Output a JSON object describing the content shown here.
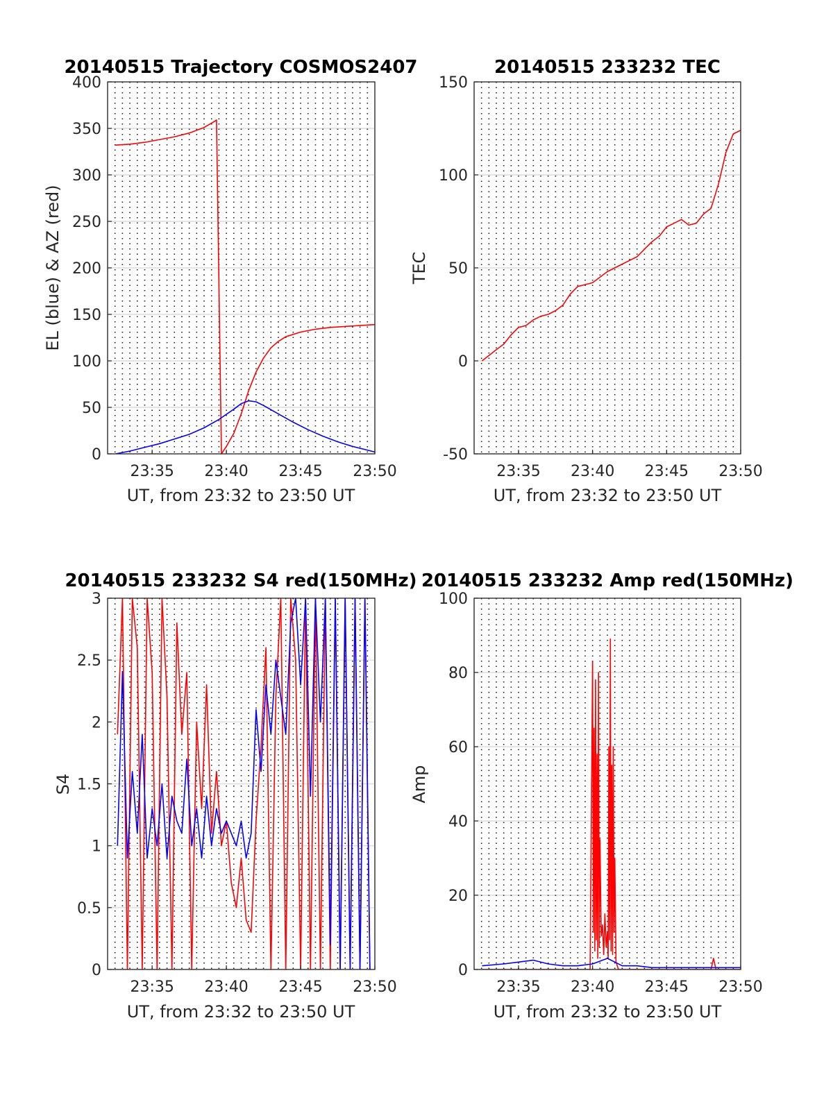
{
  "colors": {
    "red": "#ff0000",
    "blue": "#0000ff",
    "axis": "#262626"
  },
  "chart_data": [
    {
      "id": "trajectory",
      "type": "line",
      "title": "20140515 Trajectory COSMOS2407",
      "xlabel": "UT, from 23:32 to 23:50 UT",
      "ylabel": "EL (blue) & AZ (red)",
      "xlim": [
        "23:32",
        "23:50"
      ],
      "ylim": [
        0,
        400
      ],
      "yticks": [
        0,
        50,
        100,
        150,
        200,
        250,
        300,
        350,
        400
      ],
      "ytick_labels": [
        "0",
        "50",
        "100",
        "150",
        "200",
        "250",
        "300",
        "350",
        "400"
      ],
      "xticks": [
        "23:35",
        "23:40",
        "23:45",
        "23:50"
      ],
      "grid": {
        "y": "solid light gray",
        "x": "dotted every 30 s"
      },
      "series": [
        {
          "color": "red",
          "role": "AZ",
          "x": [
            "23:32:32",
            "23:33:30",
            "23:34:30",
            "23:35:30",
            "23:36:30",
            "23:37:30",
            "23:38:30",
            "23:39:15",
            "23:39:20",
            "23:39:40",
            "23:40:00",
            "23:40:30",
            "23:41:00",
            "23:41:30",
            "23:42:00",
            "23:42:30",
            "23:43:00",
            "23:43:30",
            "23:44:00",
            "23:45:00",
            "23:46:00",
            "23:47:00",
            "23:48:00",
            "23:49:00",
            "23:50:00"
          ],
          "y": [
            332,
            333,
            335,
            338,
            341,
            345,
            351,
            358,
            359,
            0,
            8,
            22,
            43,
            68,
            88,
            103,
            114,
            121,
            126,
            131,
            134,
            136,
            137,
            138,
            139
          ]
        },
        {
          "color": "blue",
          "role": "EL",
          "x": [
            "23:32:32",
            "23:33:30",
            "23:34:30",
            "23:35:30",
            "23:36:30",
            "23:37:30",
            "23:38:30",
            "23:39:30",
            "23:40:30",
            "23:41:00",
            "23:41:30",
            "23:42:00",
            "23:42:30",
            "23:43:30",
            "23:44:30",
            "23:45:30",
            "23:46:30",
            "23:47:30",
            "23:48:30",
            "23:49:30",
            "23:50:00"
          ],
          "y": [
            0,
            3,
            7,
            11,
            16,
            21,
            28,
            37,
            48,
            54,
            57,
            56,
            52,
            43,
            34,
            26,
            19,
            13,
            8,
            4,
            2
          ]
        }
      ]
    },
    {
      "id": "tec",
      "type": "line",
      "title": "20140515 233232 TEC",
      "xlabel": "UT, from 23:32 to 23:50 UT",
      "ylabel": "TEC",
      "xlim": [
        "23:32",
        "23:50"
      ],
      "ylim": [
        -50,
        150
      ],
      "yticks": [
        -50,
        0,
        50,
        100,
        150
      ],
      "ytick_labels": [
        "-50",
        "0",
        "50",
        "100",
        "150"
      ],
      "xticks": [
        "23:35",
        "23:40",
        "23:45",
        "23:50"
      ],
      "grid": {
        "y": "solid light gray",
        "x": "dotted every 30 s"
      },
      "series": [
        {
          "color": "red",
          "role": "TEC",
          "x": [
            "23:32:32",
            "23:33:30",
            "23:34:00",
            "23:34:30",
            "23:35:00",
            "23:35:30",
            "23:36:00",
            "23:36:30",
            "23:37:00",
            "23:37:30",
            "23:38:00",
            "23:38:30",
            "23:39:00",
            "23:39:30",
            "23:40:00",
            "23:40:30",
            "23:41:00",
            "23:41:30",
            "23:42:00",
            "23:42:30",
            "23:43:00",
            "23:43:30",
            "23:44:00",
            "23:44:30",
            "23:45:00",
            "23:45:30",
            "23:46:00",
            "23:46:30",
            "23:47:00",
            "23:47:30",
            "23:48:00",
            "23:48:30",
            "23:49:00",
            "23:49:30",
            "23:50:00"
          ],
          "y": [
            0,
            6,
            9,
            14,
            18,
            19,
            22,
            24,
            25,
            27,
            30,
            36,
            40,
            41,
            42,
            45,
            48,
            50,
            52,
            54,
            56,
            60,
            64,
            67,
            72,
            74,
            76,
            73,
            74,
            79,
            82,
            95,
            112,
            122,
            124
          ]
        }
      ]
    },
    {
      "id": "s4",
      "type": "line",
      "title": "20140515 233232 S4 red(150MHz)",
      "xlabel": "UT, from 23:32 to 23:50 UT",
      "ylabel": "S4",
      "xlim": [
        "23:32",
        "23:50"
      ],
      "ylim": [
        0,
        3
      ],
      "yticks": [
        0,
        0.5,
        1,
        1.5,
        2,
        2.5,
        3
      ],
      "ytick_labels": [
        "0",
        "0.5",
        "1",
        "1.5",
        "2",
        "2.5",
        "3"
      ],
      "xticks": [
        "23:35",
        "23:40",
        "23:45",
        "23:50"
      ],
      "grid": {
        "y": "solid light gray",
        "x": "dotted every 30 s"
      },
      "series": [
        {
          "color": "red",
          "role": "S4 red",
          "x": [
            "23:32:40",
            "23:33:00",
            "23:33:20",
            "23:33:40",
            "23:34:00",
            "23:34:20",
            "23:34:40",
            "23:35:00",
            "23:35:20",
            "23:35:40",
            "23:36:00",
            "23:36:20",
            "23:36:40",
            "23:37:00",
            "23:37:20",
            "23:37:40",
            "23:38:00",
            "23:38:20",
            "23:38:40",
            "23:39:00",
            "23:39:20",
            "23:39:40",
            "23:40:00",
            "23:40:20",
            "23:40:40",
            "23:41:00",
            "23:41:20",
            "23:41:40",
            "23:42:00",
            "23:42:20",
            "23:42:40",
            "23:43:00",
            "23:43:20",
            "23:43:40",
            "23:44:00",
            "23:44:20",
            "23:44:40",
            "23:45:00",
            "23:45:20",
            "23:45:40",
            "23:46:00",
            "23:46:20",
            "23:46:40",
            "23:47:00",
            "23:47:20",
            "23:47:40",
            "23:48:00",
            "23:48:20",
            "23:48:40",
            "23:49:00",
            "23:49:20",
            "23:49:40"
          ],
          "y": [
            1.9,
            3.0,
            0.0,
            3.0,
            2.6,
            0.0,
            3.0,
            2.4,
            0.0,
            3.0,
            2.2,
            0.0,
            2.8,
            1.9,
            2.4,
            0.0,
            2.0,
            1.3,
            2.3,
            1.1,
            1.6,
            1.0,
            1.2,
            0.7,
            0.5,
            0.9,
            0.4,
            0.3,
            1.2,
            1.8,
            2.6,
            0.0,
            2.2,
            3.0,
            0.0,
            3.0,
            2.5,
            0.0,
            3.0,
            0.0,
            3.0,
            0.0,
            3.0,
            0.0,
            3.0,
            0.0,
            3.0,
            0.0,
            3.0,
            0.0,
            3.0,
            0.0
          ]
        },
        {
          "color": "blue",
          "role": "S4 blue",
          "x": [
            "23:32:40",
            "23:33:00",
            "23:33:20",
            "23:33:40",
            "23:34:00",
            "23:34:20",
            "23:34:40",
            "23:35:00",
            "23:35:20",
            "23:35:40",
            "23:36:00",
            "23:36:20",
            "23:36:40",
            "23:37:00",
            "23:37:20",
            "23:37:40",
            "23:38:00",
            "23:38:20",
            "23:38:40",
            "23:39:00",
            "23:39:20",
            "23:39:40",
            "23:40:00",
            "23:40:20",
            "23:40:40",
            "23:41:00",
            "23:41:20",
            "23:41:40",
            "23:42:00",
            "23:42:20",
            "23:42:40",
            "23:43:00",
            "23:43:20",
            "23:43:40",
            "23:44:00",
            "23:44:20",
            "23:44:40",
            "23:45:00",
            "23:45:20",
            "23:45:40",
            "23:46:00",
            "23:46:20",
            "23:46:40",
            "23:47:00",
            "23:47:20",
            "23:47:40",
            "23:48:00",
            "23:48:20",
            "23:48:40",
            "23:49:00",
            "23:49:20",
            "23:49:40"
          ],
          "y": [
            1.0,
            2.4,
            0.9,
            1.6,
            1.1,
            1.9,
            0.9,
            1.3,
            1.0,
            1.5,
            0.9,
            1.4,
            1.2,
            1.1,
            1.7,
            1.0,
            1.3,
            0.9,
            1.4,
            1.0,
            1.3,
            1.1,
            1.2,
            1.1,
            1.0,
            1.2,
            0.9,
            1.1,
            2.1,
            1.6,
            2.3,
            1.9,
            2.5,
            2.2,
            1.9,
            2.8,
            3.0,
            2.3,
            3.0,
            1.4,
            3.0,
            2.0,
            3.0,
            0.2,
            3.0,
            0.0,
            3.0,
            0.0,
            3.0,
            0.0,
            3.0,
            0.0
          ]
        }
      ]
    },
    {
      "id": "amp",
      "type": "line",
      "title": "20140515 233232 Amp red(150MHz)",
      "xlabel": "UT, from 23:32 to 23:50 UT",
      "ylabel": "Amp",
      "xlim": [
        "23:32",
        "23:50"
      ],
      "ylim": [
        0,
        100
      ],
      "yticks": [
        0,
        20,
        40,
        60,
        80,
        100
      ],
      "ytick_labels": [
        "0",
        "20",
        "40",
        "60",
        "80",
        "100"
      ],
      "xticks": [
        "23:35",
        "23:40",
        "23:45",
        "23:50"
      ],
      "grid": {
        "y": "solid light gray",
        "x": "dotted every 30 s"
      },
      "series": [
        {
          "color": "red",
          "role": "Amp red",
          "x": [
            "23:32:32",
            "23:39:50",
            "23:40:00",
            "23:40:03",
            "23:40:06",
            "23:40:09",
            "23:40:12",
            "23:40:15",
            "23:40:18",
            "23:40:21",
            "23:40:24",
            "23:40:27",
            "23:40:30",
            "23:40:35",
            "23:40:40",
            "23:40:45",
            "23:40:50",
            "23:40:55",
            "23:41:00",
            "23:41:03",
            "23:41:06",
            "23:41:09",
            "23:41:12",
            "23:41:15",
            "23:41:18",
            "23:41:21",
            "23:41:24",
            "23:41:27",
            "23:41:30",
            "23:41:35",
            "23:41:45",
            "23:48:00",
            "23:48:10",
            "23:48:20",
            "23:50:00"
          ],
          "y": [
            0,
            0,
            83,
            10,
            65,
            5,
            78,
            8,
            58,
            3,
            80,
            6,
            35,
            9,
            12,
            4,
            15,
            6,
            10,
            3,
            60,
            8,
            89,
            5,
            55,
            4,
            60,
            10,
            30,
            2,
            0,
            0,
            3,
            0,
            0
          ]
        },
        {
          "color": "blue",
          "role": "Amp blue",
          "x": [
            "23:32:32",
            "23:34:00",
            "23:35:00",
            "23:36:00",
            "23:37:00",
            "23:38:00",
            "23:39:00",
            "23:40:00",
            "23:41:00",
            "23:41:30",
            "23:42:00",
            "23:43:00",
            "23:44:00",
            "23:45:00",
            "23:46:00",
            "23:47:00",
            "23:48:00",
            "23:49:00",
            "23:50:00"
          ],
          "y": [
            1,
            1.5,
            2,
            2.5,
            1.5,
            1,
            1,
            1.5,
            3,
            2,
            1,
            1,
            0.5,
            0.5,
            0.5,
            0.5,
            0.5,
            0.5,
            0.5
          ]
        }
      ]
    }
  ]
}
